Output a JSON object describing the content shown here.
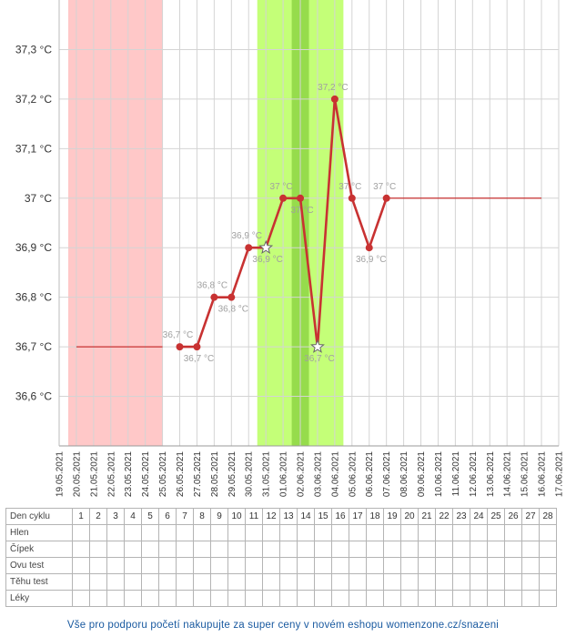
{
  "chart_data": {
    "type": "line",
    "title": "",
    "xlabel": "",
    "ylabel": "",
    "y_unit": "°C",
    "ylim": [
      36.5,
      37.4
    ],
    "y_ticks": [
      "36,6 °C",
      "36,7 °C",
      "36,8 °C",
      "36,9 °C",
      "37,1 °C",
      "37,2 °C",
      "37,3 °C"
    ],
    "y_ticks_values": [
      36.6,
      36.7,
      36.8,
      36.9,
      37.1,
      37.2,
      37.3
    ],
    "y_tick_37": "37 °C",
    "x_ticks": [
      "19.05.2021",
      "20.05.2021",
      "21.05.2021",
      "22.05.2021",
      "23.05.2021",
      "24.05.2021",
      "25.05.2021",
      "26.05.2021",
      "27.05.2021",
      "28.05.2021",
      "29.05.2021",
      "30.05.2021",
      "31.05.2021",
      "01.06.2021",
      "02.06.2021",
      "03.06.2021",
      "04.06.2021",
      "05.06.2021",
      "06.06.2021",
      "07.06.2021",
      "08.06.2021",
      "09.06.2021",
      "10.06.2021",
      "11.06.2021",
      "12.06.2021",
      "13.06.2021",
      "14.06.2021",
      "15.06.2021",
      "16.06.2021",
      "17.06.2021"
    ],
    "grid": true,
    "series": [
      {
        "color": "#c83232",
        "points": [
          {
            "x": "26.05.2021",
            "y": 36.7,
            "label": "36,7 °C"
          },
          {
            "x": "27.05.2021",
            "y": 36.7,
            "label": "36,7 °C"
          },
          {
            "x": "28.05.2021",
            "y": 36.8,
            "label": "36,8 °C"
          },
          {
            "x": "29.05.2021",
            "y": 36.8,
            "label": "36,8 °C"
          },
          {
            "x": "30.05.2021",
            "y": 36.9,
            "label": "36,9 °C"
          },
          {
            "x": "31.05.2021",
            "y": 36.9,
            "label": "36,9 °C",
            "marker": "star"
          },
          {
            "x": "01.06.2021",
            "y": 37.0,
            "label": "37 °C"
          },
          {
            "x": "02.06.2021",
            "y": 37.0,
            "label": "37 °C"
          },
          {
            "x": "03.06.2021",
            "y": 36.7,
            "label": "36,7 °C",
            "marker": "star"
          },
          {
            "x": "04.06.2021",
            "y": 37.2,
            "label": "37,2 °C"
          },
          {
            "x": "05.06.2021",
            "y": 37.0,
            "label": "37 °C"
          },
          {
            "x": "06.06.2021",
            "y": 36.9,
            "label": "36,9 °C"
          },
          {
            "x": "07.06.2021",
            "y": 37.0,
            "label": "37 °C"
          }
        ]
      }
    ],
    "reference_lines": [
      {
        "from": "20.05.2021",
        "to": "25.05.2021",
        "y": 36.7,
        "color": "#c83232"
      },
      {
        "from": "07.06.2021",
        "to": "16.06.2021",
        "y": 37.0,
        "color": "#c83232"
      }
    ],
    "bands": [
      {
        "kind": "menstruation",
        "from": "19.05.2021",
        "to": "25.05.2021",
        "color": "#ffc8c8"
      },
      {
        "kind": "fertile",
        "from": "30.05.2021",
        "to": "04.06.2021",
        "color": "#c4ff78"
      },
      {
        "kind": "ovulation",
        "from": "01.06.2021",
        "to": "02.06.2021",
        "color": "#96dc4c"
      }
    ]
  },
  "table": {
    "row_headers": [
      "Den cyklu",
      "Hlen",
      "Čípek",
      "Ovu test",
      "Těhu test",
      "Léky"
    ],
    "days": [
      "1",
      "2",
      "3",
      "4",
      "5",
      "6",
      "7",
      "8",
      "9",
      "10",
      "11",
      "12",
      "13",
      "14",
      "15",
      "16",
      "17",
      "18",
      "19",
      "20",
      "21",
      "22",
      "23",
      "24",
      "25",
      "26",
      "27",
      "28"
    ]
  },
  "footer": {
    "text": "Vše pro podporu početí nakupujte za super ceny v novém eshopu womenzone.cz/snazeni"
  }
}
